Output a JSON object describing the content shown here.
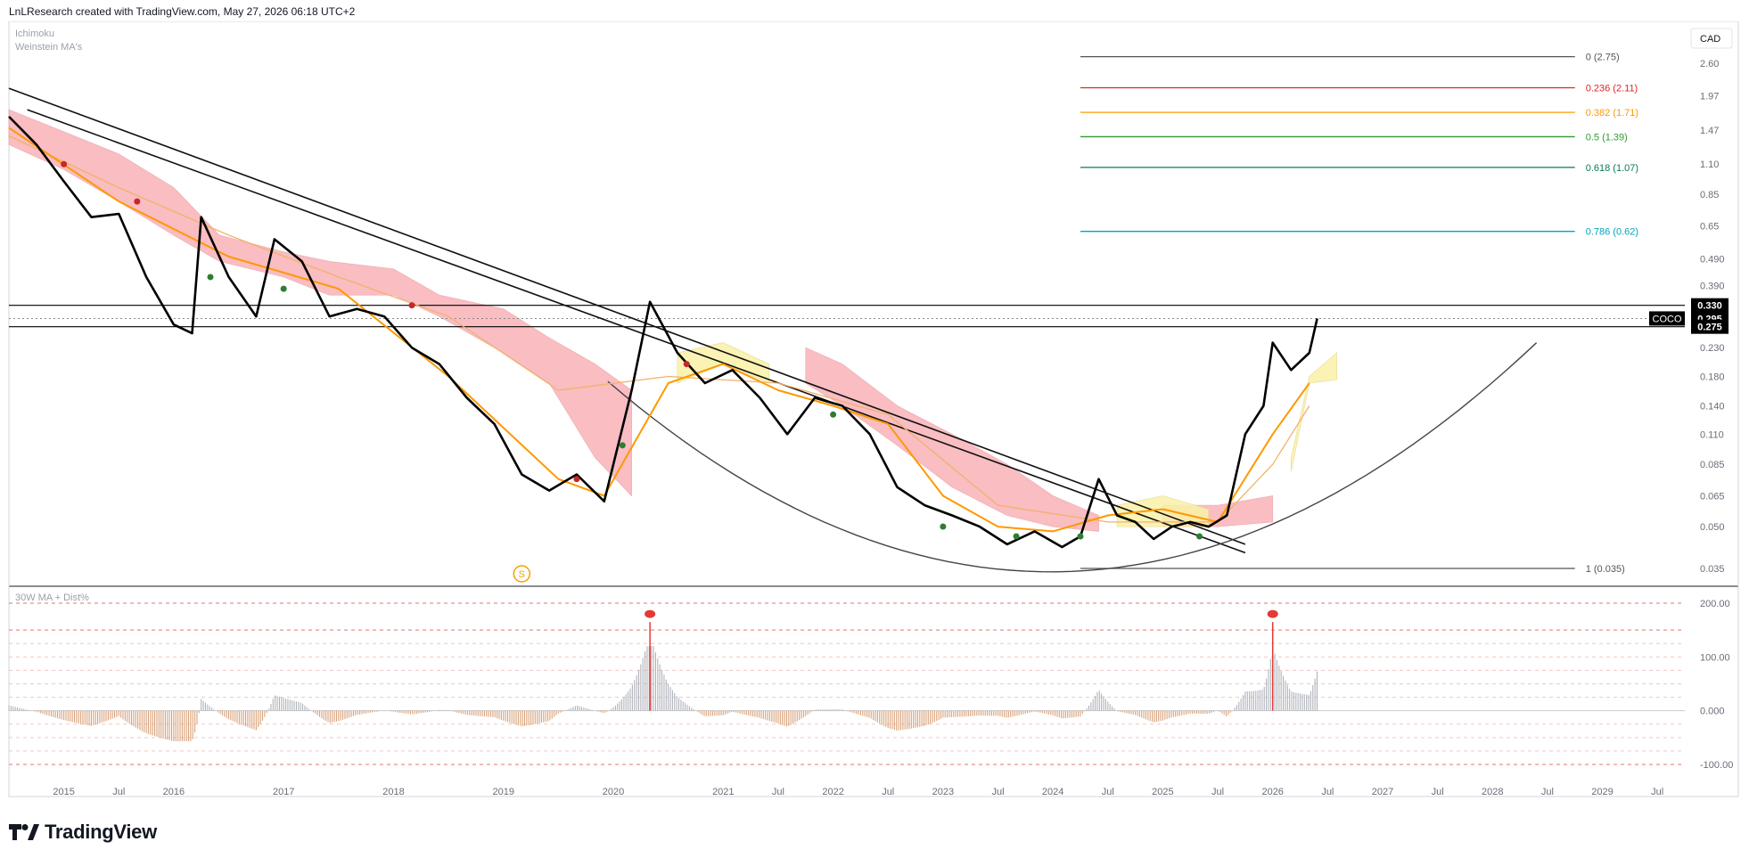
{
  "header": {
    "attribution": "LnLResearch created with TradingView.com, May 27, 2026 06:18 UTC+2"
  },
  "footer": {
    "brand": "TradingView"
  },
  "chart_data": {
    "type": "line",
    "symbol": "COCO",
    "currency": "CAD",
    "indicators": [
      "Ichimoku",
      "Weinstein MA's"
    ],
    "price_axis": {
      "scale": "log",
      "ticks": [
        "2.60",
        "1.97",
        "1.47",
        "1.10",
        "0.85",
        "0.65",
        "0.490",
        "0.390",
        "0.230",
        "0.180",
        "0.140",
        "0.110",
        "0.085",
        "0.065",
        "0.050",
        "0.035"
      ],
      "labels_highlighted": [
        {
          "text": "0.330",
          "value": 0.33
        },
        {
          "text": "COCO",
          "value": 0.295,
          "price": "0.295"
        },
        {
          "text": "0.275",
          "value": 0.275
        }
      ]
    },
    "time_axis": {
      "ticks": [
        "2015",
        "Jul",
        "2016",
        "2017",
        "2018",
        "2019",
        "2020",
        "2021",
        "Jul",
        "2022",
        "Jul",
        "2023",
        "Jul",
        "2024",
        "Jul",
        "2025",
        "Jul",
        "2026",
        "Jul",
        "2027",
        "Jul",
        "2028",
        "Jul",
        "2029",
        "Jul"
      ],
      "range": [
        "2014-07",
        "2029-10"
      ]
    },
    "fib_levels": [
      {
        "label": "0 (2.75)",
        "value": 2.75,
        "color": "#555555"
      },
      {
        "label": "0.236 (2.11)",
        "value": 2.11,
        "color": "#e02424"
      },
      {
        "label": "0.382 (1.71)",
        "value": 1.71,
        "color": "#ff9800"
      },
      {
        "label": "0.5 (1.39)",
        "value": 1.39,
        "color": "#2e9e2e"
      },
      {
        "label": "0.618 (1.07)",
        "value": 1.07,
        "color": "#087a5a"
      },
      {
        "label": "0.786 (0.62)",
        "value": 0.62,
        "color": "#00a5c0"
      },
      {
        "label": "1 (0.035)",
        "value": 0.035,
        "color": "#555555"
      }
    ],
    "horizontal_levels": [
      0.33,
      0.275
    ],
    "series": [
      {
        "name": "COCO",
        "color": "#000000",
        "points": [
          [
            "2014-07",
            1.65
          ],
          [
            "2014-10",
            1.3
          ],
          [
            "2015-01",
            0.95
          ],
          [
            "2015-04",
            0.7
          ],
          [
            "2015-07",
            0.72
          ],
          [
            "2015-10",
            0.42
          ],
          [
            "2016-01",
            0.28
          ],
          [
            "2016-03",
            0.26
          ],
          [
            "2016-04",
            0.7
          ],
          [
            "2016-07",
            0.42
          ],
          [
            "2016-10",
            0.3
          ],
          [
            "2016-12",
            0.58
          ],
          [
            "2017-03",
            0.48
          ],
          [
            "2017-06",
            0.3
          ],
          [
            "2017-09",
            0.32
          ],
          [
            "2017-12",
            0.3
          ],
          [
            "2018-03",
            0.23
          ],
          [
            "2018-06",
            0.2
          ],
          [
            "2018-09",
            0.15
          ],
          [
            "2018-12",
            0.12
          ],
          [
            "2019-03",
            0.078
          ],
          [
            "2019-06",
            0.068
          ],
          [
            "2019-09",
            0.078
          ],
          [
            "2019-12",
            0.062
          ],
          [
            "2020-03",
            0.16
          ],
          [
            "2020-05",
            0.34
          ],
          [
            "2020-08",
            0.22
          ],
          [
            "2020-11",
            0.17
          ],
          [
            "2021-02",
            0.19
          ],
          [
            "2021-05",
            0.15
          ],
          [
            "2021-08",
            0.11
          ],
          [
            "2021-11",
            0.15
          ],
          [
            "2022-02",
            0.14
          ],
          [
            "2022-05",
            0.11
          ],
          [
            "2022-08",
            0.07
          ],
          [
            "2022-11",
            0.06
          ],
          [
            "2023-02",
            0.055
          ],
          [
            "2023-05",
            0.05
          ],
          [
            "2023-08",
            0.043
          ],
          [
            "2023-11",
            0.048
          ],
          [
            "2024-02",
            0.042
          ],
          [
            "2024-04",
            0.046
          ],
          [
            "2024-06",
            0.075
          ],
          [
            "2024-08",
            0.055
          ],
          [
            "2024-10",
            0.052
          ],
          [
            "2024-12",
            0.045
          ],
          [
            "2025-02",
            0.05
          ],
          [
            "2025-04",
            0.052
          ],
          [
            "2025-06",
            0.05
          ],
          [
            "2025-08",
            0.055
          ],
          [
            "2025-10",
            0.11
          ],
          [
            "2025-12",
            0.14
          ],
          [
            "2026-01",
            0.24
          ],
          [
            "2026-03",
            0.19
          ],
          [
            "2026-05",
            0.22
          ],
          [
            "2026-05-27",
            0.295
          ]
        ]
      },
      {
        "name": "MA fast",
        "color": "#ff9800",
        "points": [
          [
            "2014-07",
            1.5
          ],
          [
            "2015-07",
            0.8
          ],
          [
            "2016-07",
            0.5
          ],
          [
            "2017-07",
            0.38
          ],
          [
            "2018-07",
            0.18
          ],
          [
            "2019-07",
            0.075
          ],
          [
            "2019-12",
            0.065
          ],
          [
            "2020-07",
            0.17
          ],
          [
            "2021-01",
            0.2
          ],
          [
            "2021-07",
            0.16
          ],
          [
            "2022-01",
            0.14
          ],
          [
            "2022-07",
            0.12
          ],
          [
            "2023-01",
            0.065
          ],
          [
            "2023-07",
            0.05
          ],
          [
            "2024-01",
            0.048
          ],
          [
            "2024-07",
            0.055
          ],
          [
            "2025-01",
            0.058
          ],
          [
            "2025-07",
            0.052
          ],
          [
            "2026-01",
            0.11
          ],
          [
            "2026-05",
            0.17
          ]
        ]
      },
      {
        "name": "MA slow",
        "color": "#f2b26a",
        "points": [
          [
            "2014-07",
            1.4
          ],
          [
            "2015-07",
            0.9
          ],
          [
            "2016-07",
            0.6
          ],
          [
            "2017-07",
            0.42
          ],
          [
            "2018-07",
            0.3
          ],
          [
            "2019-07",
            0.16
          ],
          [
            "2020-07",
            0.18
          ],
          [
            "2021-07",
            0.17
          ],
          [
            "2022-07",
            0.13
          ],
          [
            "2023-07",
            0.06
          ],
          [
            "2024-07",
            0.052
          ],
          [
            "2025-07",
            0.052
          ],
          [
            "2026-01",
            0.085
          ],
          [
            "2026-05",
            0.14
          ]
        ]
      }
    ],
    "lower_pane": {
      "title": "30W MA + Dist%",
      "ticks": [
        "200.00",
        "100.00",
        "0.000",
        "-100.00"
      ],
      "ylim": [
        -110,
        210
      ],
      "spikes": [
        {
          "date": "2020-05",
          "value": 180
        },
        {
          "date": "2026-01",
          "value": 180
        }
      ]
    },
    "marker_label": "S"
  }
}
